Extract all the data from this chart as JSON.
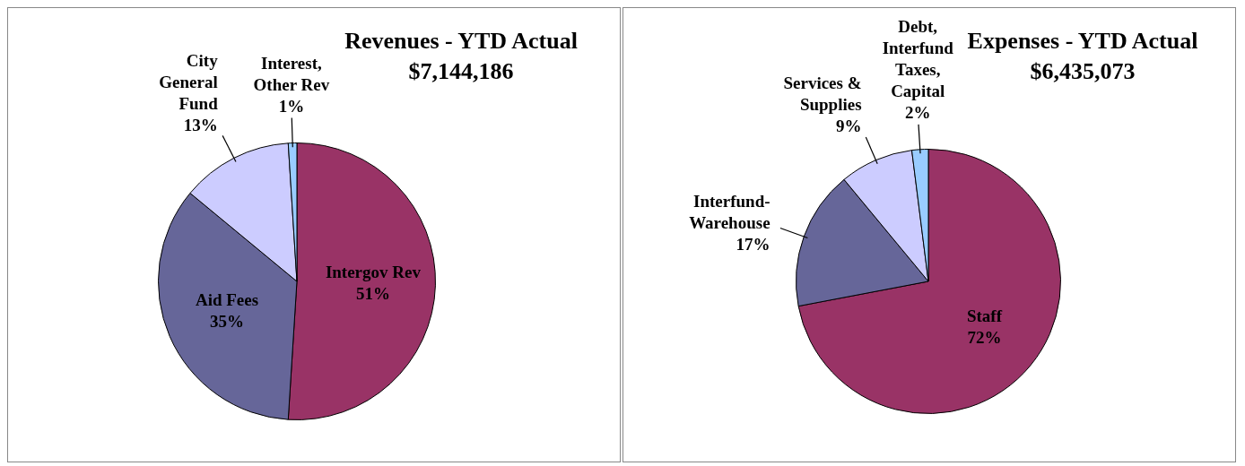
{
  "chart_data": [
    {
      "type": "pie",
      "title": "Revenues - YTD Actual",
      "subtitle": "$7,144,186",
      "categories": [
        "Intergov Rev",
        "Aid Fees",
        "City General Fund",
        "Interest, Other Rev"
      ],
      "values": [
        51,
        35,
        13,
        1
      ],
      "colors": [
        "#993366",
        "#666699",
        "#ccccff",
        "#99ccff"
      ],
      "value_labels": [
        "51%",
        "35%",
        "13%",
        "1%"
      ],
      "legend": false
    },
    {
      "type": "pie",
      "title": "Expenses - YTD Actual",
      "subtitle": "$6,435,073",
      "categories": [
        "Staff",
        "Interfund-Warehouse",
        "Services & Supplies",
        "Debt, Interfund Taxes, Capital"
      ],
      "values": [
        72,
        17,
        9,
        2
      ],
      "colors": [
        "#993366",
        "#666699",
        "#ccccff",
        "#99ccff"
      ],
      "value_labels": [
        "72%",
        "17%",
        "9%",
        "2%"
      ],
      "legend": false
    }
  ]
}
